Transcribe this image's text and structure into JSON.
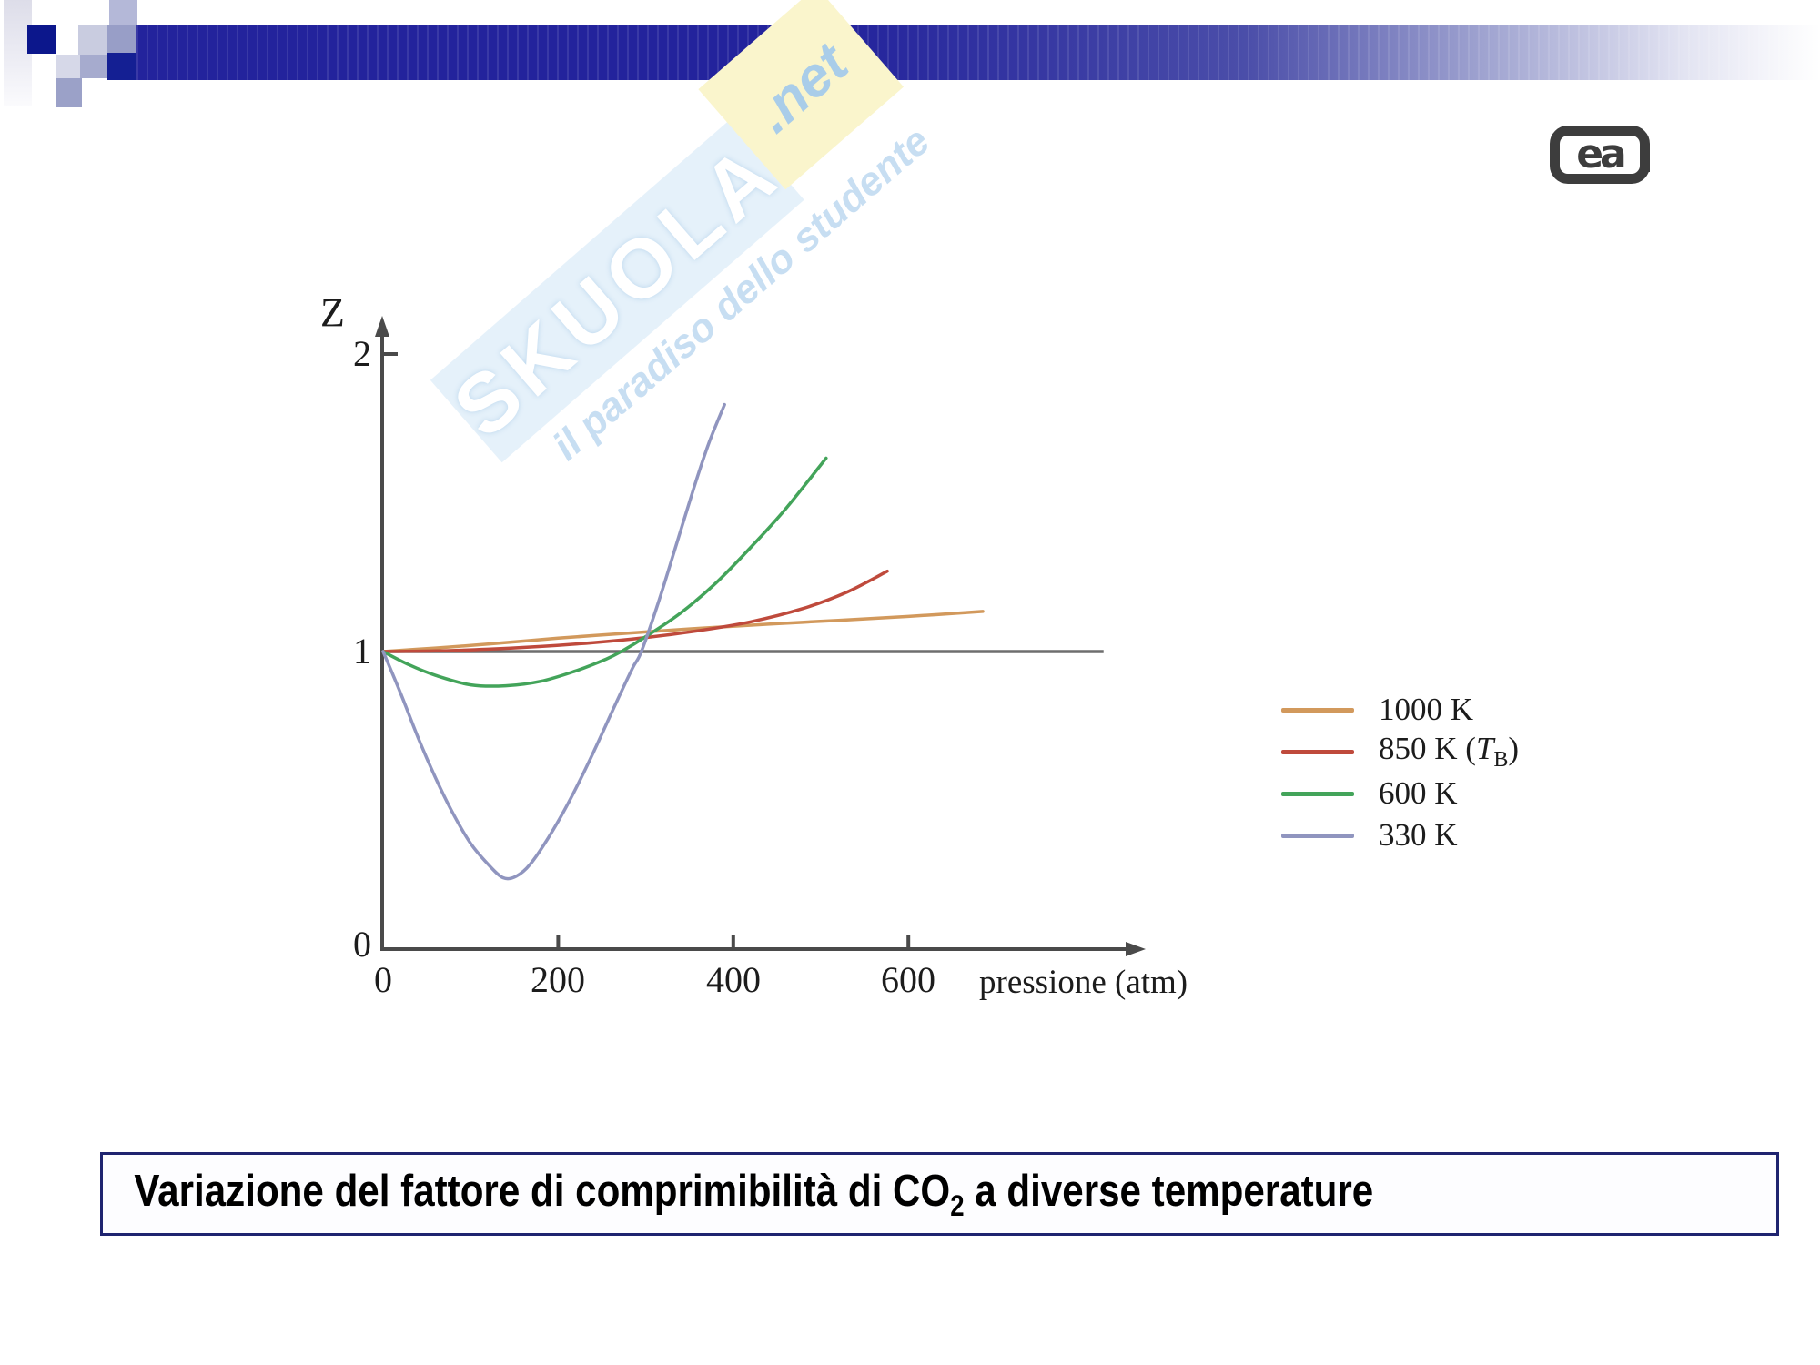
{
  "watermark": {
    "brand": "SKUOLA",
    "net": ".net",
    "tagline": "il paradiso dello studente"
  },
  "logo": {
    "text": "ea"
  },
  "chart": {
    "y_axis_title": "Z",
    "x_axis_title": "pressione (atm)",
    "y_tick_labels": [
      "2",
      "1",
      "0"
    ],
    "x_tick_labels": [
      "0",
      "200",
      "400",
      "600"
    ]
  },
  "legend": {
    "items": [
      {
        "label": "1000 K"
      },
      {
        "label_prefix": "850 K (",
        "label_var": "T",
        "label_var_sub": "B",
        "label_suffix": ")"
      },
      {
        "label": "600 K"
      },
      {
        "label": "330 K"
      }
    ]
  },
  "caption": {
    "prefix": "Variazione del fattore di comprimibilità di CO",
    "subscript": "2",
    "suffix": " a diverse temperature"
  },
  "chart_data": {
    "type": "line",
    "title": "",
    "xlabel": "pressione (atm)",
    "ylabel": "Z",
    "xlim": [
      0,
      830
    ],
    "ylim": [
      0,
      2.1
    ],
    "x_ticks": [
      0,
      200,
      400,
      600
    ],
    "y_ticks": [
      0,
      1,
      2
    ],
    "grid": false,
    "legend_position": "right",
    "reference_line": {
      "z": 1.0,
      "x_start": 0,
      "x_end": 823,
      "color": "#6e6e6e"
    },
    "axis_color": "#4a4a4a",
    "series": [
      {
        "name": "1000 K",
        "color": "#d2995c",
        "points": [
          [
            0,
            1.0
          ],
          [
            60,
            1.012
          ],
          [
            120,
            1.025
          ],
          [
            200,
            1.045
          ],
          [
            280,
            1.062
          ],
          [
            360,
            1.078
          ],
          [
            440,
            1.092
          ],
          [
            520,
            1.105
          ],
          [
            600,
            1.118
          ],
          [
            685,
            1.135
          ]
        ]
      },
      {
        "name": "850 K (TB)",
        "color": "#bf4a3c",
        "points": [
          [
            0,
            1.0
          ],
          [
            60,
            1.002
          ],
          [
            120,
            1.008
          ],
          [
            180,
            1.017
          ],
          [
            240,
            1.03
          ],
          [
            300,
            1.047
          ],
          [
            360,
            1.07
          ],
          [
            420,
            1.1
          ],
          [
            480,
            1.145
          ],
          [
            530,
            1.2
          ],
          [
            576,
            1.27
          ]
        ]
      },
      {
        "name": "600 K",
        "color": "#43a45a",
        "points": [
          [
            0,
            1.0
          ],
          [
            30,
            0.955
          ],
          [
            60,
            0.92
          ],
          [
            100,
            0.888
          ],
          [
            140,
            0.885
          ],
          [
            180,
            0.9
          ],
          [
            220,
            0.935
          ],
          [
            255,
            0.975
          ],
          [
            272,
            1.0
          ],
          [
            300,
            1.05
          ],
          [
            340,
            1.13
          ],
          [
            380,
            1.23
          ],
          [
            420,
            1.35
          ],
          [
            460,
            1.48
          ],
          [
            506,
            1.65
          ]
        ]
      },
      {
        "name": "330 K",
        "color": "#9095bf",
        "points": [
          [
            0,
            1.0
          ],
          [
            20,
            0.86
          ],
          [
            40,
            0.71
          ],
          [
            60,
            0.575
          ],
          [
            80,
            0.455
          ],
          [
            100,
            0.355
          ],
          [
            120,
            0.285
          ],
          [
            137,
            0.24
          ],
          [
            152,
            0.245
          ],
          [
            168,
            0.285
          ],
          [
            190,
            0.38
          ],
          [
            215,
            0.51
          ],
          [
            240,
            0.66
          ],
          [
            265,
            0.82
          ],
          [
            285,
            0.945
          ],
          [
            295,
            1.0
          ],
          [
            315,
            1.17
          ],
          [
            335,
            1.36
          ],
          [
            355,
            1.55
          ],
          [
            372,
            1.7
          ],
          [
            390,
            1.83
          ]
        ]
      }
    ]
  }
}
